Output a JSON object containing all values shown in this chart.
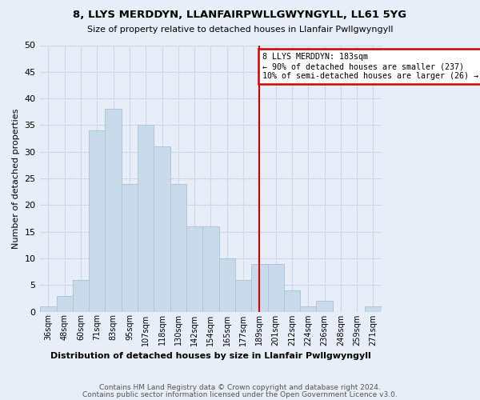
{
  "title": "8, LLYS MERDDYN, LLANFAIRPWLLGWYNGYLL, LL61 5YG",
  "subtitle": "Size of property relative to detached houses in Llanfair Pwllgwyngyll",
  "xlabel": "Distribution of detached houses by size in Llanfair Pwllgwyngyll",
  "ylabel": "Number of detached properties",
  "bin_labels": [
    "36sqm",
    "48sqm",
    "60sqm",
    "71sqm",
    "83sqm",
    "95sqm",
    "107sqm",
    "118sqm",
    "130sqm",
    "142sqm",
    "154sqm",
    "165sqm",
    "177sqm",
    "189sqm",
    "201sqm",
    "212sqm",
    "224sqm",
    "236sqm",
    "248sqm",
    "259sqm",
    "271sqm"
  ],
  "bar_heights": [
    1,
    3,
    6,
    34,
    38,
    24,
    35,
    31,
    24,
    16,
    16,
    10,
    6,
    9,
    9,
    4,
    1,
    2,
    0,
    0,
    1
  ],
  "bar_color": "#c9daea",
  "bar_edge_color": "#b0c4d8",
  "grid_color": "#d0d8e8",
  "background_color": "#e8eef8",
  "property_line_index": 13.0,
  "property_line_color": "#cc0000",
  "annotation_text": "8 LLYS MERDDYN: 183sqm\n← 90% of detached houses are smaller (237)\n10% of semi-detached houses are larger (26) →",
  "annotation_box_color": "#cc0000",
  "ylim": [
    0,
    50
  ],
  "yticks": [
    0,
    5,
    10,
    15,
    20,
    25,
    30,
    35,
    40,
    45,
    50
  ],
  "footer_line1": "Contains HM Land Registry data © Crown copyright and database right 2024.",
  "footer_line2": "Contains public sector information licensed under the Open Government Licence v3.0.",
  "n_bins": 21
}
